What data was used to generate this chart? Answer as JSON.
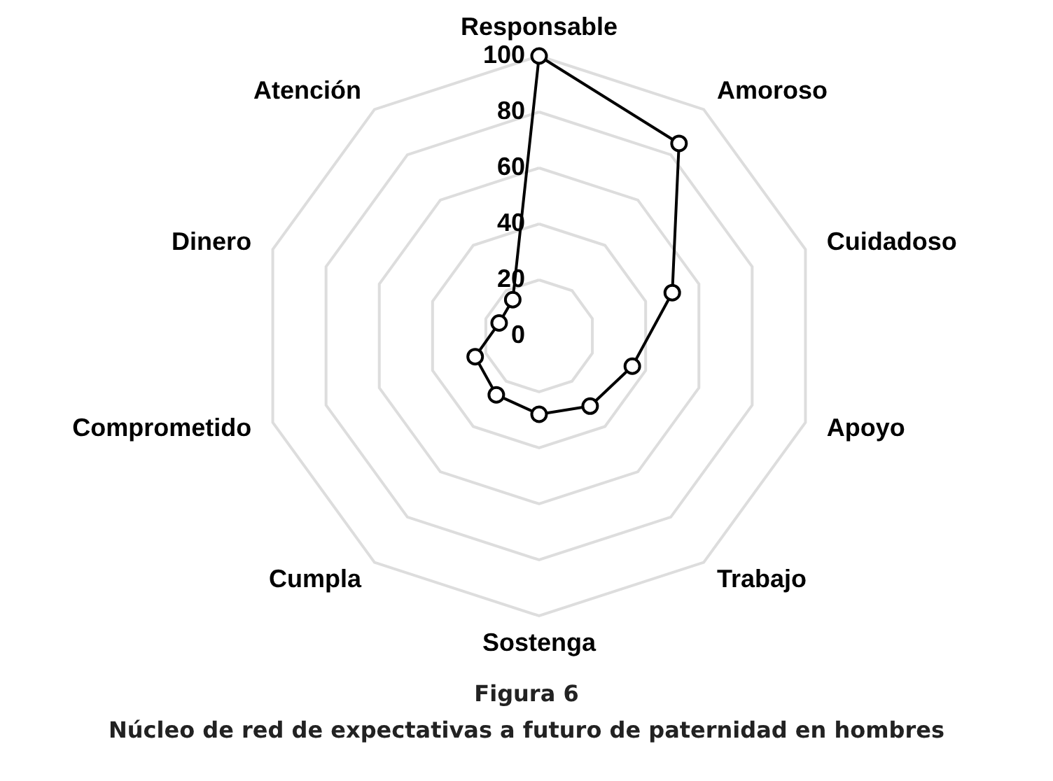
{
  "chart_data": {
    "type": "radar",
    "title": "Figura 6",
    "subtitle": "Núcleo de red de expectativas a futuro de paternidad en hombres",
    "categories": [
      "Responsable",
      "Amoroso",
      "Cuidadoso",
      "Apoyo",
      "Trabajo",
      "Sostenga",
      "Cumpla",
      "Comprometido",
      "Dinero",
      "Atención"
    ],
    "series": [
      {
        "color": "#000000",
        "values": [
          100,
          85,
          50,
          35,
          31,
          28,
          26,
          24,
          15,
          16
        ]
      }
    ],
    "ylim": [
      0,
      100
    ],
    "yticks": [
      0,
      20,
      40,
      60,
      80,
      100
    ],
    "grid": true,
    "marker": "circle"
  }
}
